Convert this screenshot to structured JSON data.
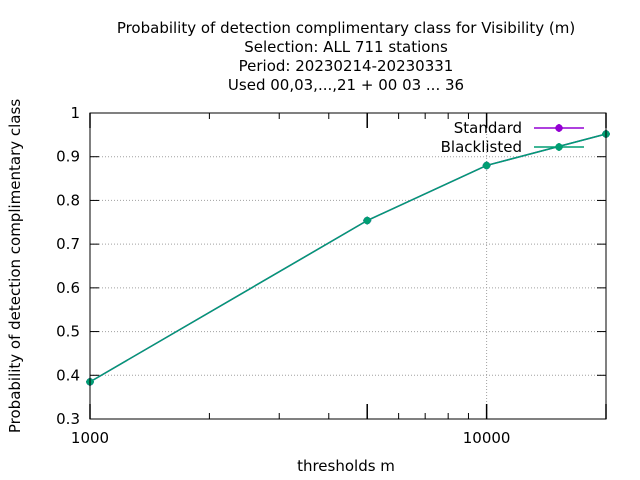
{
  "chart_data": {
    "type": "line",
    "title_lines": [
      "Probability of detection complimentary class  for Visibility (m)",
      "Selection: ALL    711 stations",
      "Period: 20230214-20230331",
      "Used  00,03,...,21  + 00 03 ... 36"
    ],
    "xlabel": "thresholds m",
    "ylabel": "Probability of detection complimentary class",
    "x_scale": "log",
    "xlim": [
      1000,
      20000
    ],
    "ylim": [
      0.3,
      1.0
    ],
    "x_major_ticks": [
      1000,
      10000
    ],
    "x_minor_ticks": [
      2000,
      3000,
      4000,
      5000,
      6000,
      7000,
      8000,
      9000,
      20000
    ],
    "x_tick_labels": [
      "1000",
      "10000"
    ],
    "y_ticks": [
      0.3,
      0.4,
      0.5,
      0.6,
      0.7,
      0.8,
      0.9,
      1.0
    ],
    "y_tick_labels": [
      "0.3",
      "0.4",
      "0.5",
      "0.6",
      "0.7",
      "0.8",
      "0.9",
      "1"
    ],
    "grid": true,
    "legend_position": "top-right",
    "series": [
      {
        "name": "Standard",
        "color": "#9400d3",
        "x": [
          1000,
          5000,
          10000,
          20000
        ],
        "y": [
          0.385,
          0.754,
          0.88,
          0.952
        ]
      },
      {
        "name": "Blacklisted",
        "color": "#009e73",
        "x": [
          1000,
          5000,
          10000,
          20000
        ],
        "y": [
          0.385,
          0.754,
          0.88,
          0.952
        ]
      }
    ]
  }
}
